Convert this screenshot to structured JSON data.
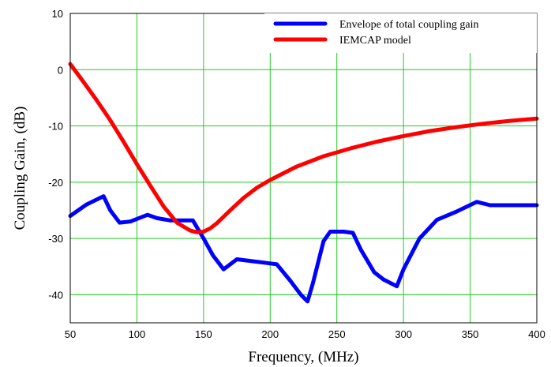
{
  "chart_data": {
    "type": "line",
    "xlabel": "Frequency, (MHz)",
    "ylabel": "Coupling Gain, (dB)",
    "xlim": [
      50,
      400
    ],
    "ylim": [
      -45,
      10
    ],
    "xticks": [
      "50",
      "100",
      "150",
      "200",
      "250",
      "300",
      "350",
      "400"
    ],
    "yticks": [
      "10",
      "0",
      "-10",
      "-20",
      "-30",
      "-40"
    ],
    "grid": true,
    "legend_position": "top-right",
    "series": [
      {
        "name": "Envelope of total coupling gain",
        "color": "#0000ff",
        "x": [
          50,
          62,
          75,
          80,
          87,
          95,
          108,
          115,
          125,
          130,
          142,
          150,
          157,
          165,
          175,
          185,
          195,
          205,
          215,
          223,
          228,
          232,
          240,
          245,
          255,
          262,
          268,
          278,
          285,
          295,
          300,
          312,
          318,
          325,
          340,
          355,
          365,
          380,
          400
        ],
        "y": [
          -26,
          -24,
          -22.5,
          -25,
          -27.2,
          -27,
          -25.8,
          -26.4,
          -26.8,
          -26.8,
          -26.8,
          -30,
          -33,
          -35.5,
          -33.7,
          -34,
          -34.3,
          -34.6,
          -37.5,
          -40,
          -41.2,
          -38,
          -30.5,
          -28.8,
          -28.8,
          -29,
          -32,
          -36,
          -37.3,
          -38.5,
          -35.5,
          -30,
          -28.5,
          -26.7,
          -25.2,
          -23.5,
          -24.1,
          -24.1,
          -24.1
        ]
      },
      {
        "name": "IEMCAP model",
        "color": "#ff0000",
        "x": [
          50,
          60,
          70,
          80,
          90,
          100,
          110,
          120,
          130,
          140,
          145,
          150,
          155,
          160,
          170,
          180,
          190,
          200,
          220,
          240,
          260,
          280,
          300,
          320,
          340,
          360,
          380,
          400
        ],
        "y": [
          1,
          -2.2,
          -5.5,
          -9,
          -12.8,
          -16.8,
          -20.6,
          -24.3,
          -27.2,
          -28.6,
          -28.9,
          -28.8,
          -28.2,
          -27.3,
          -25,
          -22.8,
          -21,
          -19.6,
          -17.2,
          -15.4,
          -14,
          -12.8,
          -11.8,
          -10.9,
          -10.2,
          -9.6,
          -9.1,
          -8.7
        ]
      }
    ]
  }
}
